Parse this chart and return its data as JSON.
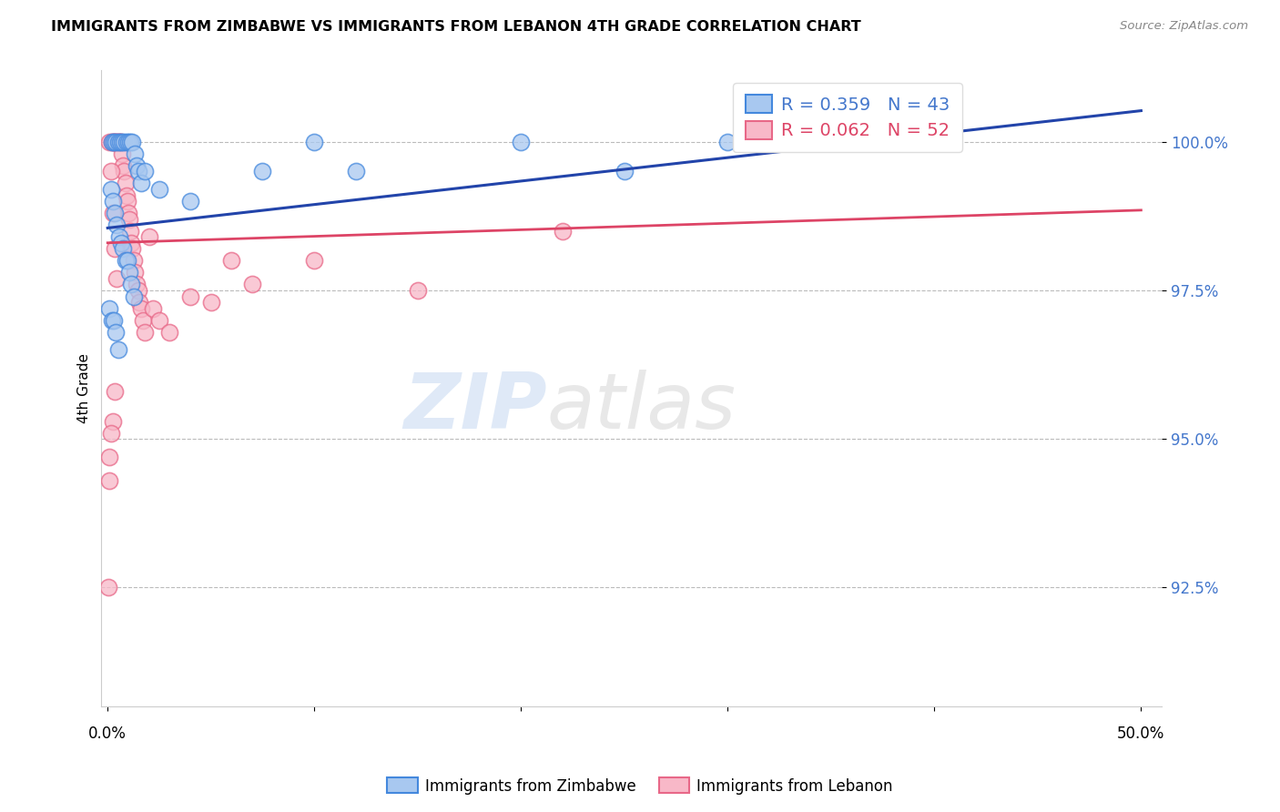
{
  "title": "IMMIGRANTS FROM ZIMBABWE VS IMMIGRANTS FROM LEBANON 4TH GRADE CORRELATION CHART",
  "source": "Source: ZipAtlas.com",
  "ylabel": "4th Grade",
  "y_ticks": [
    92.5,
    95.0,
    97.5,
    100.0
  ],
  "y_tick_labels": [
    "92.5%",
    "95.0%",
    "97.5%",
    "100.0%"
  ],
  "y_lim": [
    90.5,
    101.2
  ],
  "x_lim": [
    -0.3,
    51.0
  ],
  "legend_r_blue": "R = 0.359",
  "legend_n_blue": "N = 43",
  "legend_r_pink": "R = 0.062",
  "legend_n_pink": "N = 52",
  "blue_fill": "#A8C8F0",
  "pink_fill": "#F8B8C8",
  "blue_edge": "#4488DD",
  "pink_edge": "#E86888",
  "blue_line": "#2244AA",
  "pink_line": "#DD4466",
  "legend_label_blue": "Immigrants from Zimbabwe",
  "legend_label_pink": "Immigrants from Lebanon",
  "blue_line_x0": 0,
  "blue_line_y0": 98.55,
  "blue_line_x1": 38,
  "blue_line_y1": 100.05,
  "pink_line_x0": 0,
  "pink_line_y0": 98.3,
  "pink_line_x1": 50,
  "pink_line_y1": 98.85,
  "blue_x": [
    0.2,
    0.3,
    0.4,
    0.5,
    0.6,
    0.7,
    0.8,
    0.9,
    1.0,
    1.1,
    1.2,
    1.3,
    1.4,
    1.5,
    1.6,
    0.15,
    0.25,
    0.35,
    0.45,
    0.55,
    0.65,
    0.75,
    0.85,
    0.95,
    1.05,
    1.15,
    1.25,
    0.1,
    0.2,
    0.3,
    0.4,
    0.5,
    1.8,
    2.5,
    4.0,
    7.5,
    10.0,
    12.0,
    20.0,
    25.0,
    30.0,
    35.0,
    38.0
  ],
  "blue_y": [
    100.0,
    100.0,
    100.0,
    100.0,
    100.0,
    100.0,
    100.0,
    100.0,
    100.0,
    100.0,
    100.0,
    99.8,
    99.6,
    99.5,
    99.3,
    99.2,
    99.0,
    98.8,
    98.6,
    98.4,
    98.3,
    98.2,
    98.0,
    98.0,
    97.8,
    97.6,
    97.4,
    97.2,
    97.0,
    97.0,
    96.8,
    96.5,
    99.5,
    99.2,
    99.0,
    99.5,
    100.0,
    99.5,
    100.0,
    99.5,
    100.0,
    100.0,
    100.0
  ],
  "pink_x": [
    0.1,
    0.2,
    0.25,
    0.3,
    0.35,
    0.4,
    0.45,
    0.5,
    0.55,
    0.6,
    0.65,
    0.7,
    0.75,
    0.8,
    0.85,
    0.9,
    0.95,
    1.0,
    1.05,
    1.1,
    1.15,
    1.2,
    1.25,
    1.3,
    1.4,
    1.5,
    1.55,
    1.6,
    1.7,
    1.8,
    2.0,
    2.2,
    2.5,
    3.0,
    4.0,
    5.0,
    6.0,
    7.0,
    10.0,
    15.0,
    22.0,
    35.0,
    0.15,
    0.25,
    0.35,
    0.45,
    0.35,
    0.25,
    0.15,
    0.1,
    0.1,
    0.05
  ],
  "pink_y": [
    100.0,
    100.0,
    100.0,
    100.0,
    100.0,
    100.0,
    100.0,
    100.0,
    100.0,
    100.0,
    100.0,
    99.8,
    99.6,
    99.5,
    99.3,
    99.1,
    99.0,
    98.8,
    98.7,
    98.5,
    98.3,
    98.2,
    98.0,
    97.8,
    97.6,
    97.5,
    97.3,
    97.2,
    97.0,
    96.8,
    98.4,
    97.2,
    97.0,
    96.8,
    97.4,
    97.3,
    98.0,
    97.6,
    98.0,
    97.5,
    98.5,
    100.0,
    99.5,
    98.8,
    98.2,
    97.7,
    95.8,
    95.3,
    95.1,
    94.7,
    94.3,
    92.5
  ]
}
